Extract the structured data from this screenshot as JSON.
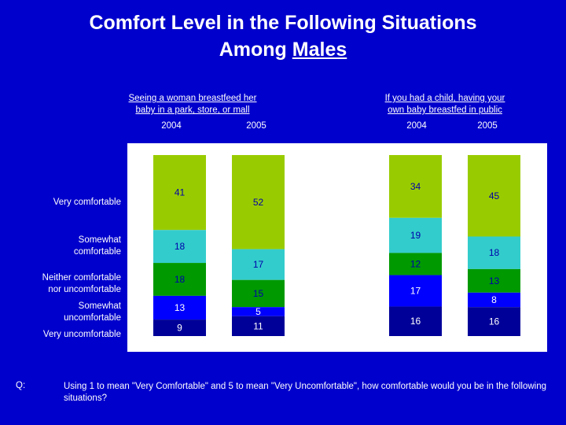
{
  "title": {
    "line1": "Comfort Level in the Following Situations",
    "line2_prefix": "Among ",
    "line2_underlined": "Males"
  },
  "question": {
    "label": "Q:",
    "text": "Using 1 to mean \"Very Comfortable\" and 5 to mean \"Very Uncomfortable\", how comfortable would you be in the following situations?"
  },
  "chart_data": {
    "type": "bar",
    "stacked": true,
    "title": "Comfort Level in the Following Situations Among Males",
    "groups": [
      {
        "label_line1": "Seeing a woman breastfeed her",
        "label_line2": "baby in a park, store, or mall"
      },
      {
        "label_line1": "If you had a child, having your",
        "label_line2": "own baby breastfed in public"
      }
    ],
    "categories": [
      "2004",
      "2005",
      "2004",
      "2005"
    ],
    "series": [
      {
        "name": "Very comfortable",
        "values": [
          41,
          52,
          34,
          45
        ],
        "color": "#99CC00"
      },
      {
        "name": "Somewhat comfortable",
        "values": [
          18,
          17,
          19,
          18
        ],
        "color": "#33CCCC"
      },
      {
        "name": "Neither comfortable nor uncomfortable",
        "values": [
          18,
          15,
          12,
          13
        ],
        "color": "#009900"
      },
      {
        "name": "Somewhat uncomfortable",
        "values": [
          13,
          5,
          17,
          8
        ],
        "color": "#0000FF"
      },
      {
        "name": "Very uncomfortable",
        "values": [
          9,
          11,
          16,
          16
        ],
        "color": "#000099"
      }
    ],
    "legend_labels": [
      {
        "lines": [
          "Very comfortable"
        ]
      },
      {
        "lines": [
          "Somewhat",
          "comfortable"
        ]
      },
      {
        "lines": [
          "Neither comfortable",
          "nor uncomfortable"
        ]
      },
      {
        "lines": [
          "Somewhat",
          "uncomfortable"
        ]
      },
      {
        "lines": [
          "Very uncomfortable"
        ]
      }
    ]
  }
}
